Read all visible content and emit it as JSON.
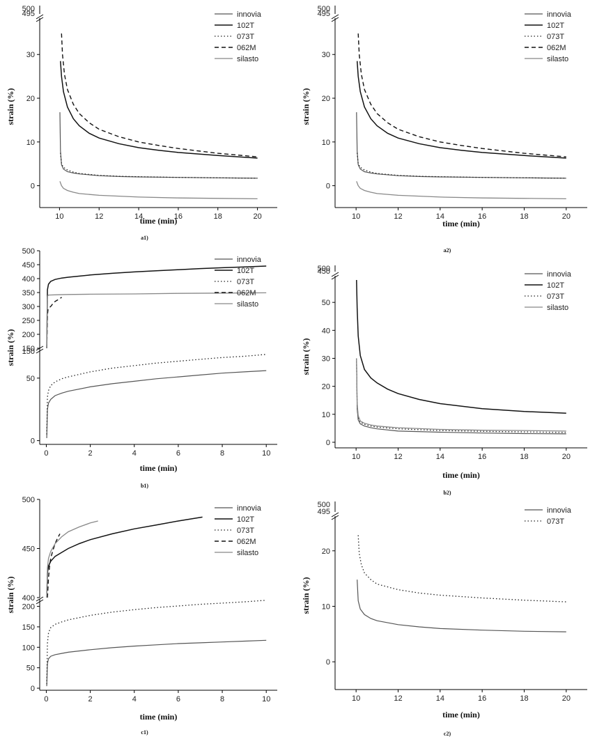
{
  "chart_data": [
    {
      "id": "a1",
      "caption": "a1)",
      "type": "line",
      "xlabel": "time (min)",
      "ylabel": "strain (%)",
      "xlim": [
        9,
        21
      ],
      "xticks": [
        10,
        12,
        14,
        16,
        18,
        20
      ],
      "ylim": [
        -5,
        38
      ],
      "yticks": [
        0,
        10,
        20,
        30
      ],
      "upper_ticks": [
        "495",
        "500"
      ],
      "legend": [
        "innovia",
        "102T",
        "073T",
        "062M",
        "silasto"
      ],
      "series": [
        {
          "name": "innovia",
          "x": [
            10.02,
            10.05,
            10.1,
            10.2,
            10.4,
            10.7,
            11,
            12,
            13,
            14,
            16,
            18,
            20
          ],
          "y": [
            16.8,
            8,
            4.8,
            3.8,
            3.2,
            2.9,
            2.7,
            2.3,
            2.1,
            2.0,
            1.9,
            1.8,
            1.7
          ]
        },
        {
          "name": "102T",
          "x": [
            10.05,
            10.1,
            10.2,
            10.4,
            10.7,
            11,
            11.5,
            12,
            13,
            14,
            15,
            16,
            18,
            20
          ],
          "y": [
            28.5,
            25,
            21.5,
            18,
            15.3,
            13.7,
            12,
            10.9,
            9.6,
            8.7,
            8.1,
            7.6,
            6.9,
            6.3
          ]
        },
        {
          "name": "073T",
          "x": [
            10.05,
            10.1,
            10.2,
            10.4,
            10.7,
            11,
            12,
            13,
            14,
            16,
            18,
            20
          ],
          "y": [
            7.5,
            5,
            4.2,
            3.6,
            3.1,
            2.8,
            2.35,
            2.15,
            2.05,
            1.9,
            1.8,
            1.7
          ]
        },
        {
          "name": "062M",
          "x": [
            10.1,
            10.15,
            10.25,
            10.4,
            10.7,
            11,
            11.5,
            12,
            13,
            14,
            15,
            16,
            18,
            20
          ],
          "y": [
            34.8,
            30,
            25.5,
            22,
            18.6,
            16.5,
            14.4,
            12.9,
            11.2,
            10,
            9.2,
            8.5,
            7.4,
            6.6
          ]
        },
        {
          "name": "silasto",
          "x": [
            10.02,
            10.1,
            10.2,
            10.4,
            10.7,
            11,
            12,
            14,
            16,
            18,
            20
          ],
          "y": [
            1,
            0,
            -0.6,
            -1.1,
            -1.5,
            -1.8,
            -2.2,
            -2.6,
            -2.8,
            -2.9,
            -3
          ]
        }
      ]
    },
    {
      "id": "a2",
      "caption": "a2)",
      "type": "line",
      "xlabel": "time (min)",
      "ylabel": "strain (%)",
      "xlim": [
        9,
        21
      ],
      "xticks": [
        10,
        12,
        14,
        16,
        18,
        20
      ],
      "ylim": [
        -5,
        38
      ],
      "yticks": [
        0,
        10,
        20,
        30
      ],
      "upper_ticks": [
        "495",
        "500"
      ],
      "legend": [
        "innovia",
        "102T",
        "073T",
        "062M",
        "silasto"
      ],
      "series": [
        {
          "name": "innovia",
          "x": [
            10.02,
            10.05,
            10.1,
            10.2,
            10.4,
            10.7,
            11,
            12,
            13,
            14,
            16,
            18,
            20
          ],
          "y": [
            16.8,
            8,
            4.8,
            3.8,
            3.2,
            2.9,
            2.7,
            2.3,
            2.1,
            2.0,
            1.9,
            1.8,
            1.7
          ]
        },
        {
          "name": "102T",
          "x": [
            10.05,
            10.1,
            10.2,
            10.4,
            10.7,
            11,
            11.5,
            12,
            13,
            14,
            15,
            16,
            18,
            20
          ],
          "y": [
            28.5,
            25,
            21.5,
            18,
            15.3,
            13.7,
            12,
            10.9,
            9.6,
            8.7,
            8.1,
            7.6,
            6.9,
            6.3
          ]
        },
        {
          "name": "073T",
          "x": [
            10.05,
            10.1,
            10.2,
            10.4,
            10.7,
            11,
            12,
            13,
            14,
            16,
            18,
            20
          ],
          "y": [
            7.5,
            5,
            4.2,
            3.6,
            3.1,
            2.8,
            2.35,
            2.15,
            2.05,
            1.9,
            1.8,
            1.7
          ]
        },
        {
          "name": "062M",
          "x": [
            10.1,
            10.15,
            10.25,
            10.4,
            10.7,
            11,
            11.5,
            12,
            13,
            14,
            15,
            16,
            18,
            20
          ],
          "y": [
            34.8,
            30,
            25.5,
            22,
            18.6,
            16.5,
            14.4,
            12.9,
            11.2,
            10,
            9.2,
            8.5,
            7.4,
            6.6
          ]
        },
        {
          "name": "silasto",
          "x": [
            10.02,
            10.1,
            10.2,
            10.4,
            10.7,
            11,
            12,
            14,
            16,
            18,
            20
          ],
          "y": [
            1,
            0,
            -0.6,
            -1.1,
            -1.5,
            -1.8,
            -2.2,
            -2.6,
            -2.8,
            -2.9,
            -3
          ]
        }
      ]
    },
    {
      "id": "b1",
      "caption": "b1)",
      "type": "line",
      "broken_axis": true,
      "xlabel": "time (min)",
      "ylabel": "strain (%)",
      "xlim": [
        -0.3,
        10.5
      ],
      "xticks": [
        0,
        2,
        4,
        6,
        8,
        10
      ],
      "lower_ylim": [
        -3,
        75
      ],
      "lower_yticks": [
        0,
        50
      ],
      "upper_ylim": [
        150,
        500
      ],
      "upper_yticks": [
        150,
        200,
        250,
        300,
        350,
        400,
        450,
        500
      ],
      "lower_tick_label_150": "150",
      "legend": [
        "innovia",
        "102T",
        "073T",
        "062M",
        "silasto"
      ],
      "series": [
        {
          "name": "innovia",
          "x": [
            0.02,
            0.05,
            0.1,
            0.2,
            0.4,
            0.7,
            1,
            2,
            3,
            4,
            5,
            6,
            7,
            8,
            9,
            10
          ],
          "y": [
            2,
            25,
            30,
            33,
            36,
            38,
            39.5,
            43,
            45.5,
            47.5,
            49.5,
            51,
            52.5,
            54,
            55,
            56
          ]
        },
        {
          "name": "073T",
          "x": [
            0.02,
            0.05,
            0.1,
            0.2,
            0.4,
            0.7,
            1,
            2,
            3,
            4,
            5,
            6,
            7,
            8,
            9,
            10
          ],
          "y": [
            5,
            35,
            40,
            44,
            47,
            49.5,
            51,
            55,
            58,
            60,
            62,
            63.5,
            65,
            66.5,
            67.5,
            69
          ]
        },
        {
          "name": "102T",
          "x": [
            0.02,
            0.05,
            0.1,
            0.2,
            0.4,
            0.7,
            1,
            2,
            3,
            4,
            5,
            6,
            7,
            8,
            9,
            10
          ],
          "y": [
            150,
            360,
            380,
            390,
            397,
            402,
            405,
            413,
            419,
            424,
            428,
            432,
            436,
            439,
            442,
            445
          ]
        },
        {
          "name": "062M",
          "x": [
            0.02,
            0.05,
            0.08,
            0.12,
            0.2,
            0.3,
            0.4,
            0.55,
            0.7
          ],
          "y": [
            150,
            270,
            290,
            295,
            300,
            310,
            318,
            325,
            333
          ]
        },
        {
          "name": "silasto",
          "x": [
            0.02,
            0.04,
            0.06,
            0.1,
            0.5,
            1,
            2,
            4,
            6,
            8,
            10
          ],
          "y": [
            150,
            320,
            338,
            341,
            342,
            343,
            344,
            345,
            347,
            348,
            349
          ]
        }
      ]
    },
    {
      "id": "b2",
      "caption": "b2)",
      "type": "line",
      "xlabel": "time (min)",
      "ylabel": "strain (%)",
      "xlim": [
        9,
        21
      ],
      "xticks": [
        10,
        12,
        14,
        16,
        18,
        20
      ],
      "ylim": [
        -2,
        59
      ],
      "yticks": [
        0,
        10,
        20,
        30,
        40,
        50
      ],
      "upper_ticks": [
        "450",
        "500"
      ],
      "legend": [
        "innovia",
        "102T",
        "073T",
        "silasto"
      ],
      "series": [
        {
          "name": "innovia",
          "x": [
            10.02,
            10.05,
            10.1,
            10.2,
            10.4,
            10.7,
            11,
            12,
            14,
            16,
            18,
            20
          ],
          "y": [
            30,
            12,
            8,
            6.6,
            5.8,
            5.2,
            4.8,
            4,
            3.6,
            3.3,
            3.1,
            3
          ]
        },
        {
          "name": "102T",
          "x": [
            10.02,
            10.05,
            10.1,
            10.2,
            10.4,
            10.7,
            11,
            11.5,
            12,
            13,
            14,
            16,
            18,
            20
          ],
          "y": [
            58,
            48,
            38,
            31,
            26,
            23,
            21.2,
            19,
            17.4,
            15.3,
            13.8,
            12,
            11,
            10.4
          ]
        },
        {
          "name": "073T",
          "x": [
            10.02,
            10.05,
            10.1,
            10.2,
            10.4,
            10.7,
            11,
            12,
            14,
            16,
            18,
            20
          ],
          "y": [
            30,
            13,
            9,
            7.2,
            6.4,
            5.8,
            5.4,
            4.8,
            4.2,
            3.9,
            3.7,
            3.5
          ]
        },
        {
          "name": "silasto",
          "x": [
            10.02,
            10.05,
            10.1,
            10.2,
            10.4,
            10.7,
            11,
            12,
            14,
            16,
            18,
            20
          ],
          "y": [
            30,
            14,
            9.5,
            7.6,
            6.8,
            6.2,
            5.8,
            5.2,
            4.6,
            4.3,
            4.2,
            4
          ]
        }
      ]
    },
    {
      "id": "c1",
      "caption": "c1)",
      "type": "line",
      "broken_axis": true,
      "xlabel": "time (min)",
      "ylabel": "strain (%)",
      "xlim": [
        -0.3,
        10.5
      ],
      "xticks": [
        0,
        2,
        4,
        6,
        8,
        10
      ],
      "lower_ylim": [
        -5,
        218
      ],
      "lower_yticks": [
        0,
        50,
        100,
        150,
        200
      ],
      "upper_ylim": [
        400,
        500
      ],
      "upper_yticks": [
        400,
        450,
        500
      ],
      "legend": [
        "innovia",
        "102T",
        "073T",
        "062M",
        "silasto"
      ],
      "series": [
        {
          "name": "innovia",
          "x": [
            0.02,
            0.05,
            0.1,
            0.2,
            0.4,
            0.7,
            1,
            2,
            3,
            4,
            5,
            6,
            7,
            8,
            9,
            10
          ],
          "y": [
            5,
            60,
            72,
            78,
            82,
            85,
            88,
            94,
            99,
            103,
            106,
            109,
            111,
            113,
            115,
            117
          ]
        },
        {
          "name": "073T",
          "x": [
            0.02,
            0.05,
            0.1,
            0.2,
            0.4,
            0.7,
            1,
            2,
            3,
            4,
            5,
            6,
            7,
            8,
            9,
            10
          ],
          "y": [
            10,
            110,
            135,
            148,
            156,
            162,
            167,
            178,
            186,
            192,
            197,
            201,
            205,
            208,
            211,
            215
          ]
        },
        {
          "name": "102T",
          "x": [
            0.02,
            0.05,
            0.1,
            0.2,
            0.4,
            0.7,
            1,
            1.5,
            2,
            3,
            4,
            5,
            6,
            7.1
          ],
          "y": [
            400,
            425,
            432,
            437,
            442,
            446,
            450,
            455,
            459,
            465,
            470,
            474,
            478,
            482
          ]
        },
        {
          "name": "062M",
          "x": [
            0.05,
            0.1,
            0.15,
            0.2,
            0.3,
            0.4,
            0.5,
            0.62
          ],
          "y": [
            400,
            420,
            432,
            440,
            448,
            455,
            460,
            465
          ]
        },
        {
          "name": "silasto",
          "x": [
            0.02,
            0.05,
            0.1,
            0.2,
            0.4,
            0.7,
            1,
            1.5,
            2,
            2.35
          ],
          "y": [
            400,
            430,
            440,
            447,
            455,
            462,
            467,
            472,
            476,
            478
          ]
        }
      ]
    },
    {
      "id": "c2",
      "caption": "c2)",
      "type": "line",
      "xlabel": "time (min)",
      "ylabel": "strain (%)",
      "xlim": [
        9,
        21
      ],
      "xticks": [
        10,
        12,
        14,
        16,
        18,
        20
      ],
      "ylim": [
        -5,
        26
      ],
      "yticks": [
        0,
        10,
        20
      ],
      "upper_ticks": [
        "495",
        "500"
      ],
      "legend": [
        "innovia",
        "073T"
      ],
      "series": [
        {
          "name": "innovia",
          "x": [
            10.05,
            10.1,
            10.2,
            10.4,
            10.7,
            11,
            12,
            13,
            14,
            16,
            18,
            20
          ],
          "y": [
            14.8,
            11,
            9.5,
            8.5,
            7.8,
            7.4,
            6.7,
            6.3,
            6.0,
            5.7,
            5.5,
            5.4
          ]
        },
        {
          "name": "073T",
          "x": [
            10.1,
            10.15,
            10.25,
            10.4,
            10.7,
            11,
            12,
            13,
            14,
            16,
            18,
            20
          ],
          "y": [
            22.8,
            19.5,
            17.5,
            16,
            14.8,
            14,
            13,
            12.4,
            12,
            11.5,
            11.1,
            10.8
          ]
        }
      ]
    }
  ]
}
